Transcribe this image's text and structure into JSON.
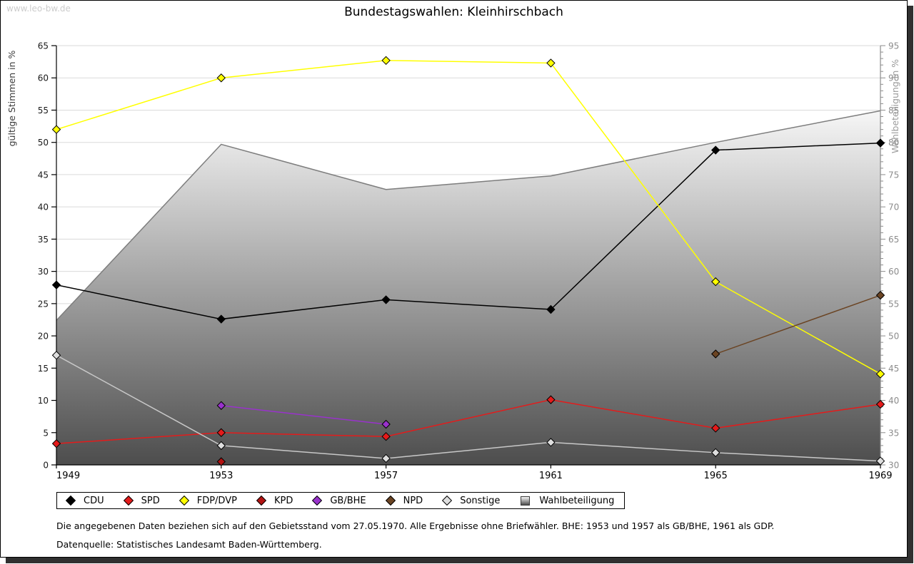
{
  "watermark": "www.leo-bw.de",
  "title": "Bundestagswahlen: Kleinhirschbach",
  "footnotes": [
    "Die angegebenen Daten beziehen sich auf den Gebietsstand vom 27.05.1970. Alle Ergebnisse ohne Briefwähler. BHE: 1953 und 1957 als GB/BHE, 1961 als GDP.",
    "Datenquelle: Statistisches Landesamt Baden-Württemberg."
  ],
  "chart_data": {
    "type": "line",
    "title": "Bundestagswahlen: Kleinhirschbach",
    "x_categories": [
      "1949",
      "1953",
      "1957",
      "1961",
      "1965",
      "1969"
    ],
    "left_axis": {
      "label": "gültige Stimmen in %",
      "min": 0,
      "max": 65,
      "tick_step": 5,
      "grid": true,
      "color": "#1a1a1a"
    },
    "right_axis": {
      "label": "Wahlbeteiligung in %",
      "min": 30,
      "max": 95,
      "tick_step": 5,
      "minor_tick_step": 1,
      "color": "#8c8c8c"
    },
    "legend_position": "bottom",
    "series": [
      {
        "name": "CDU",
        "axis": "left",
        "color": "#000000",
        "marker": "diamond",
        "values": [
          27.9,
          22.6,
          25.6,
          24.1,
          48.8,
          49.9
        ]
      },
      {
        "name": "SPD",
        "axis": "left",
        "color": "#e41b1b",
        "marker": "diamond",
        "values": [
          3.3,
          5.0,
          4.4,
          10.1,
          5.7,
          9.4
        ]
      },
      {
        "name": "FDP/DVP",
        "axis": "left",
        "color": "#ffff00",
        "marker": "diamond",
        "values": [
          52.0,
          60.0,
          62.7,
          62.3,
          28.4,
          14.1
        ]
      },
      {
        "name": "KPD",
        "axis": "left",
        "color": "#b31312",
        "marker": "diamond",
        "values": [
          null,
          0.5,
          null,
          null,
          null,
          null
        ]
      },
      {
        "name": "GB/BHE",
        "axis": "left",
        "color": "#9932cc",
        "marker": "diamond",
        "values": [
          null,
          9.2,
          6.3,
          null,
          null,
          null
        ]
      },
      {
        "name": "NPD",
        "axis": "left",
        "color": "#6b4423",
        "marker": "diamond",
        "values": [
          null,
          null,
          null,
          null,
          17.2,
          26.3
        ]
      },
      {
        "name": "Sonstige",
        "axis": "left",
        "color": "#c8c8c8",
        "marker": "diamond",
        "marker_fill": "#dedede",
        "values": [
          17.0,
          3.0,
          1.0,
          3.5,
          1.9,
          0.6
        ]
      },
      {
        "name": "Wahlbeteiligung",
        "axis": "right",
        "type": "area",
        "line_color": "#7d7d7d",
        "fill_top": "#f6f6f6",
        "fill_bottom": "#4d4d4d",
        "marker": "square",
        "values": [
          52.4,
          79.7,
          72.7,
          74.8,
          80.0,
          84.9
        ]
      }
    ]
  }
}
